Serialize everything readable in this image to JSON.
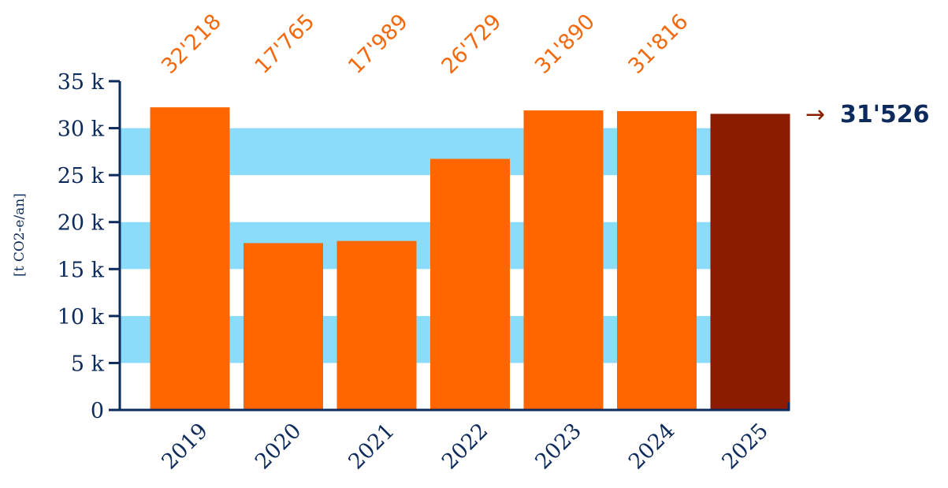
{
  "chart_data": {
    "type": "bar",
    "ylabel": "[t CO2-e/an]",
    "ylim": [
      0,
      35000
    ],
    "yticks": [
      {
        "value": 0,
        "label": "0"
      },
      {
        "value": 5000,
        "label": "5 k"
      },
      {
        "value": 10000,
        "label": "10 k"
      },
      {
        "value": 15000,
        "label": "15 k"
      },
      {
        "value": 20000,
        "label": "20 k"
      },
      {
        "value": 25000,
        "label": "25 k"
      },
      {
        "value": 30000,
        "label": "30 k"
      },
      {
        "value": 35000,
        "label": "35 k"
      }
    ],
    "categories": [
      "2019",
      "2020",
      "2021",
      "2022",
      "2023",
      "2024",
      "2025"
    ],
    "values": [
      32218,
      17765,
      17989,
      26729,
      31890,
      31816,
      31526
    ],
    "value_labels": [
      "32'218",
      "17'765",
      "17'989",
      "26'729",
      "31'890",
      "31'816",
      ""
    ],
    "final_value_label": "31'526",
    "final_arrow": "→",
    "grid": "alternating horizontal bands",
    "colors": {
      "bar": "#ff6600",
      "bar_highlight": "#8b1c00",
      "band": "#8adcfa",
      "axis": "#0d2a5c",
      "value_label": "#f26a10"
    }
  }
}
